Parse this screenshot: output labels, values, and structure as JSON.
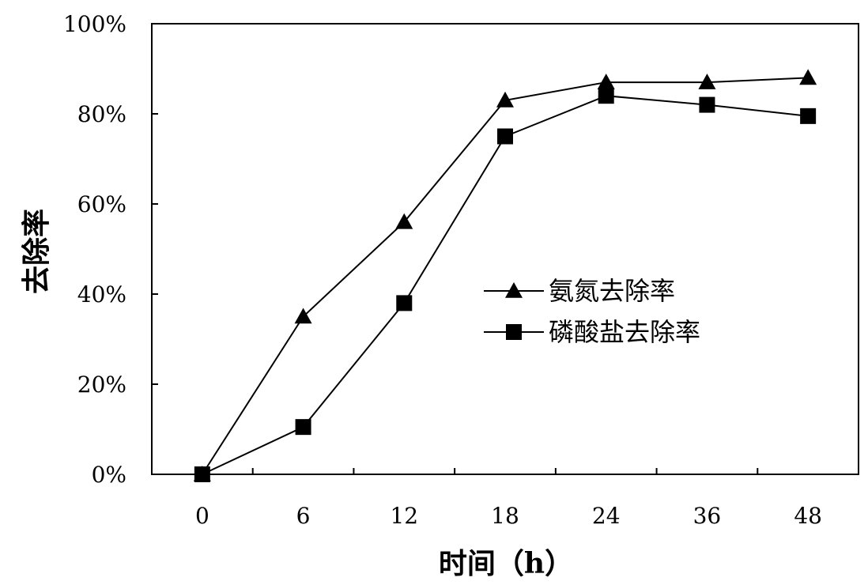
{
  "chart_data": {
    "type": "line",
    "xlabel": "时间（h）",
    "ylabel": "去除率",
    "categories": [
      "0",
      "6",
      "12",
      "18",
      "24",
      "36",
      "48"
    ],
    "yticks": [
      "0%",
      "20%",
      "40%",
      "60%",
      "80%",
      "100%"
    ],
    "ylim": [
      0,
      1
    ],
    "grid": false,
    "legend_position": "center-right",
    "series": [
      {
        "name": "氨氮去除率",
        "marker": "triangle",
        "color": "#000000",
        "values": [
          0.0,
          0.35,
          0.56,
          0.83,
          0.87,
          0.87,
          0.88
        ]
      },
      {
        "name": "磷酸盐去除率",
        "marker": "square",
        "color": "#000000",
        "values": [
          0.0,
          0.105,
          0.38,
          0.75,
          0.84,
          0.82,
          0.795
        ]
      }
    ]
  }
}
